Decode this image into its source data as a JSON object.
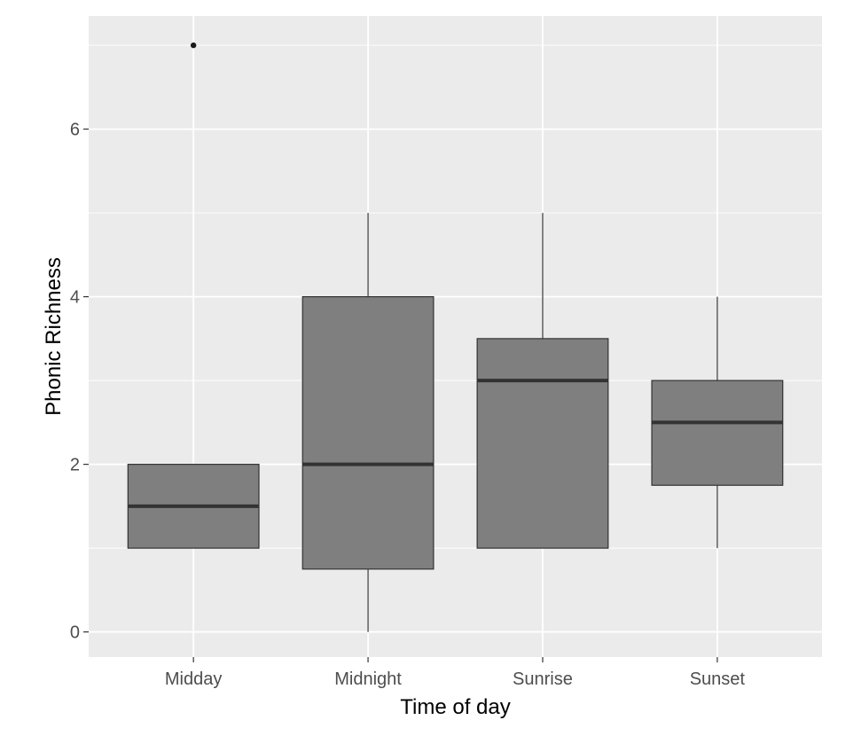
{
  "chart_data": {
    "type": "boxplot",
    "title": "",
    "xlabel": "Time of day",
    "ylabel": "Phonic Richness",
    "ylim": [
      -0.3,
      7.35
    ],
    "yticks": [
      0,
      2,
      4,
      6
    ],
    "categories": [
      "Midday",
      "Midnight",
      "Sunrise",
      "Sunset"
    ],
    "boxes": [
      {
        "category": "Midday",
        "whisker_low": 1,
        "q1": 1,
        "median": 1.5,
        "q3": 2,
        "whisker_high": 2,
        "outliers": [
          7
        ]
      },
      {
        "category": "Midnight",
        "whisker_low": 0,
        "q1": 0.75,
        "median": 2,
        "q3": 4,
        "whisker_high": 5,
        "outliers": []
      },
      {
        "category": "Sunrise",
        "whisker_low": 1,
        "q1": 1,
        "median": 3,
        "q3": 3.5,
        "whisker_high": 5,
        "outliers": []
      },
      {
        "category": "Sunset",
        "whisker_low": 1,
        "q1": 1.75,
        "median": 2.5,
        "q3": 3,
        "whisker_high": 4,
        "outliers": []
      }
    ],
    "grid": true,
    "colors": {
      "panel_background": "#ebebeb",
      "grid": "#ffffff",
      "box_fill": "#7f7f7f",
      "box_stroke": "#333333",
      "median": "#333333",
      "outlier": "#1a1a1a"
    }
  }
}
